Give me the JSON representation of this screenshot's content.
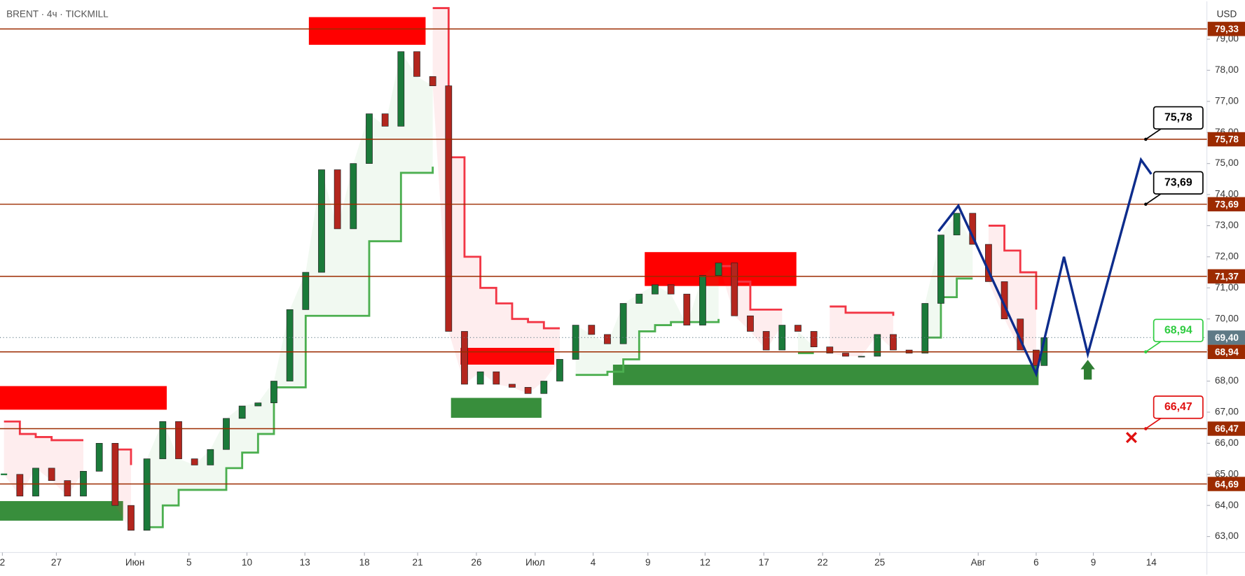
{
  "chart_data": {
    "type": "candlestick",
    "title": "BRENT · 4ч · TICKMILL",
    "currency": "USD",
    "xlim": [
      0,
      1520
    ],
    "ylim": [
      62.23,
      80.22
    ],
    "grid": false,
    "up_color": "#1b7a3a",
    "down_color": "#b3261e",
    "yticks": [
      {
        "value": 63,
        "label": "63,00"
      },
      {
        "value": 64,
        "label": "64,00"
      },
      {
        "value": 65,
        "label": "65,00"
      },
      {
        "value": 66,
        "label": "66,00"
      },
      {
        "value": 67,
        "label": "67,00"
      },
      {
        "value": 68,
        "label": "68,00"
      },
      {
        "value": 69,
        "label": "69,00"
      },
      {
        "value": 70,
        "label": "70,00"
      },
      {
        "value": 71,
        "label": "71,00"
      },
      {
        "value": 72,
        "label": "72,00"
      },
      {
        "value": 73,
        "label": "73,00"
      },
      {
        "value": 74,
        "label": "74,00"
      },
      {
        "value": 75,
        "label": "75,00"
      },
      {
        "value": 76,
        "label": "76,00"
      },
      {
        "value": 77,
        "label": "77,00"
      },
      {
        "value": 78,
        "label": "78,00"
      },
      {
        "value": 79,
        "label": "79,00"
      }
    ],
    "xticks": [
      {
        "value": 3,
        "label": "2"
      },
      {
        "value": 71,
        "label": "27"
      },
      {
        "value": 170,
        "label": "Июн"
      },
      {
        "value": 238,
        "label": "5"
      },
      {
        "value": 311,
        "label": "10"
      },
      {
        "value": 384,
        "label": "13"
      },
      {
        "value": 459,
        "label": "18"
      },
      {
        "value": 526,
        "label": "21"
      },
      {
        "value": 600,
        "label": "26"
      },
      {
        "value": 674,
        "label": "Июл"
      },
      {
        "value": 747,
        "label": "4"
      },
      {
        "value": 816,
        "label": "9"
      },
      {
        "value": 888,
        "label": "12"
      },
      {
        "value": 962,
        "label": "17"
      },
      {
        "value": 1036,
        "label": "22"
      },
      {
        "value": 1108,
        "label": "25"
      },
      {
        "value": 1232,
        "label": "Авг"
      },
      {
        "value": 1305,
        "label": "6"
      },
      {
        "value": 1377,
        "label": "9"
      },
      {
        "value": 1450,
        "label": "14"
      }
    ],
    "x": [
      5,
      25,
      45,
      65,
      85,
      105,
      125,
      145,
      165,
      185,
      205,
      225,
      245,
      265,
      285,
      305,
      325,
      345,
      365,
      385,
      405,
      425,
      445,
      465,
      485,
      505,
      525,
      545,
      565,
      585,
      605,
      625,
      645,
      665,
      685,
      705,
      725,
      745,
      765,
      785,
      805,
      825,
      845,
      865,
      885,
      905,
      925,
      945,
      965,
      985,
      1005,
      1025,
      1045,
      1065,
      1085,
      1105,
      1125,
      1145,
      1165,
      1185,
      1205,
      1225,
      1245,
      1265,
      1285,
      1305,
      1315
    ],
    "values": [
      65.0,
      64.3,
      65.2,
      64.8,
      64.3,
      65.1,
      66.0,
      64.0,
      63.2,
      65.5,
      66.7,
      65.5,
      65.3,
      65.8,
      66.8,
      67.2,
      67.3,
      68.0,
      70.3,
      71.5,
      74.8,
      72.9,
      75.0,
      76.6,
      76.2,
      78.6,
      77.8,
      77.5,
      69.6,
      67.9,
      68.3,
      67.9,
      67.8,
      67.6,
      68.0,
      68.7,
      69.8,
      69.5,
      69.2,
      70.5,
      70.8,
      71.1,
      70.8,
      69.8,
      71.4,
      71.8,
      70.1,
      69.6,
      69.0,
      69.8,
      69.6,
      69.1,
      68.9,
      68.8,
      68.8,
      69.5,
      69.0,
      68.9,
      70.5,
      72.7,
      73.4,
      72.4,
      71.2,
      70.0,
      69.0,
      68.5,
      69.4
    ],
    "support": {
      "color": "#4caf50",
      "values": [
        null,
        null,
        null,
        null,
        null,
        null,
        null,
        null,
        null,
        63.3,
        64.0,
        64.5,
        64.5,
        64.5,
        65.2,
        65.7,
        66.3,
        67.8,
        67.8,
        70.1,
        70.1,
        70.1,
        70.1,
        72.5,
        72.5,
        74.7,
        74.7,
        74.9,
        null,
        null,
        null,
        null,
        null,
        null,
        null,
        null,
        68.2,
        68.2,
        68.3,
        68.7,
        69.6,
        69.8,
        69.9,
        69.9,
        69.9,
        70.0,
        null,
        null,
        null,
        null,
        68.9,
        68.9,
        null,
        null,
        null,
        null,
        null,
        null,
        69.4,
        70.7,
        71.3,
        71.3,
        null,
        null,
        null,
        null,
        null
      ]
    },
    "resistance": {
      "color": "#f23645",
      "values": [
        66.7,
        66.3,
        66.2,
        66.1,
        66.1,
        66.1,
        null,
        65.8,
        65.3,
        null,
        null,
        null,
        null,
        null,
        null,
        null,
        null,
        null,
        null,
        null,
        null,
        null,
        null,
        null,
        null,
        null,
        null,
        80.0,
        75.2,
        72.0,
        71.0,
        70.5,
        70.0,
        69.9,
        69.7,
        69.7,
        null,
        null,
        null,
        null,
        null,
        null,
        null,
        null,
        null,
        71.7,
        71.2,
        70.3,
        70.3,
        70.3,
        null,
        null,
        70.4,
        70.2,
        70.2,
        70.2,
        70.1,
        null,
        null,
        null,
        null,
        null,
        73.0,
        72.2,
        71.5,
        70.3,
        null
      ]
    },
    "zones": [
      {
        "x": [
          0,
          210
        ],
        "y": [
          67.08,
          67.84
        ],
        "color": "#ff0000"
      },
      {
        "x": [
          0,
          155
        ],
        "y": [
          63.51,
          64.14
        ],
        "color": "#388e3c"
      },
      {
        "x": [
          389,
          536
        ],
        "y": [
          78.82,
          79.71
        ],
        "color": "#ff0000"
      },
      {
        "x": [
          580,
          698
        ],
        "y": [
          68.53,
          69.07
        ],
        "color": "#ff0000"
      },
      {
        "x": [
          568,
          682
        ],
        "y": [
          66.82,
          67.46
        ],
        "color": "#388e3c"
      },
      {
        "x": [
          812,
          1003
        ],
        "y": [
          71.06,
          72.15
        ],
        "color": "#ff0000"
      },
      {
        "x": [
          772,
          1308
        ],
        "y": [
          67.87,
          68.53
        ],
        "color": "#388e3c"
      }
    ],
    "levels": {
      "color": "#9c2b00",
      "items": [
        {
          "value": 79.33,
          "label": "79,33"
        },
        {
          "value": 75.78,
          "label": "75,78"
        },
        {
          "value": 73.69,
          "label": "73,69"
        },
        {
          "value": 71.37,
          "label": "71,37"
        },
        {
          "value": 68.94,
          "label": "68,94"
        },
        {
          "value": 66.47,
          "label": "66,47"
        },
        {
          "value": 64.69,
          "label": "64,69"
        }
      ]
    },
    "last": {
      "value": 69.4,
      "label": "69,40",
      "color": "#5f7a86"
    },
    "forecast": {
      "color": "#0d2c8c",
      "x": [
        1182,
        1207,
        1305,
        1340,
        1370,
        1437,
        1450
      ],
      "values": [
        72.82,
        73.64,
        68.23,
        72.0,
        68.87,
        75.12,
        74.66
      ]
    },
    "callouts": [
      {
        "value": 75.78,
        "label": "75,78",
        "color": "#000000"
      },
      {
        "value": 73.69,
        "label": "73,69",
        "color": "#000000"
      },
      {
        "value": 68.94,
        "label": "68,94",
        "color": "#2ecc40"
      },
      {
        "value": 66.47,
        "label": "66,47",
        "color": "#e01010"
      }
    ]
  }
}
